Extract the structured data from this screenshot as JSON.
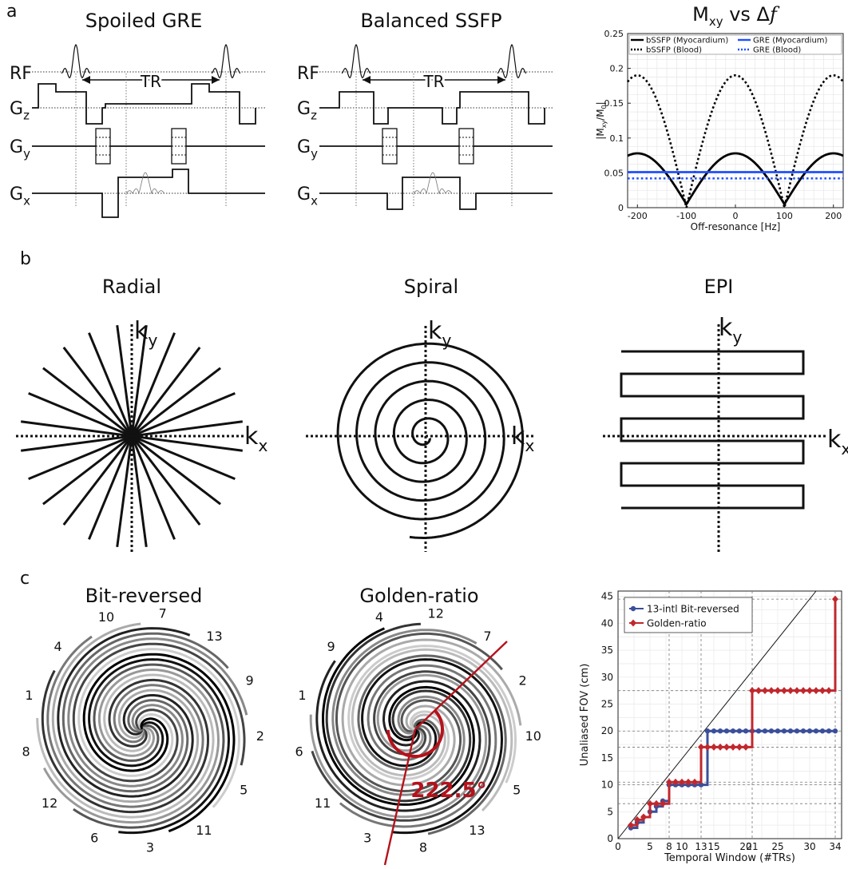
{
  "panels": {
    "a": {
      "letter": "a",
      "seq_titles": [
        "Spoiled GRE",
        "Balanced SSFP"
      ],
      "rows": {
        "rf": "RF",
        "g_main": "G",
        "gz_sub": "z",
        "gy_sub": "y",
        "gx_sub": "x",
        "tr": "TR"
      }
    },
    "b": {
      "letter": "b",
      "titles": [
        "Radial",
        "Spiral",
        "EPI"
      ],
      "k_main": "k",
      "ky_sub": "y",
      "kx_sub": "x"
    },
    "c": {
      "letter": "c",
      "titles": [
        "Bit-reversed",
        "Golden-ratio"
      ],
      "bit_reversed_labels": [
        "7",
        "13",
        "9",
        "2",
        "5",
        "11",
        "3",
        "6",
        "12",
        "8",
        "1",
        "4",
        "10"
      ],
      "golden_labels": [
        "12",
        "7",
        "2",
        "10",
        "5",
        "13",
        "8",
        "3",
        "11",
        "6",
        "1",
        "9",
        "4"
      ],
      "angle_label": "222.5°"
    }
  },
  "chart_data": [
    {
      "type": "line",
      "title": "Mₓᵧ vs Δf",
      "title_main": "M",
      "title_sub": "xy",
      "title_rest": " vs Δ",
      "title_f": "f",
      "xlabel": "Off-resonance [Hz]",
      "ylabel_main": "|M",
      "ylabel_sub1": "xy",
      "ylabel_mid": "/M",
      "ylabel_sub2": "0",
      "ylabel_end": "|",
      "xlim": [
        -220,
        220
      ],
      "ylim": [
        0,
        0.25
      ],
      "xticks": [
        "-200",
        "-100",
        "0",
        "100",
        "200"
      ],
      "xtick_values": [
        -200,
        -100,
        0,
        100,
        200
      ],
      "yticks": [
        "0",
        "0.05",
        "0.1",
        "0.15",
        "0.2",
        "0.25"
      ],
      "ytick_values": [
        0,
        0.05,
        0.1,
        0.15,
        0.2,
        0.25
      ],
      "grid": true,
      "legend_position": "top",
      "series": [
        {
          "name": "bSSFP (Myocardium)",
          "color": "#000000",
          "style": "solid",
          "kind": "bssfp",
          "peak": 0.078,
          "min": 0.005
        },
        {
          "name": "bSSFP (Blood)",
          "color": "#000000",
          "style": "dotted",
          "kind": "bssfp",
          "peak": 0.19,
          "min": 0.0
        },
        {
          "name": "GRE (Myocardium)",
          "color": "#1f4fff",
          "style": "solid",
          "kind": "const",
          "value": 0.051
        },
        {
          "name": "GRE (Blood)",
          "color": "#1f4fff",
          "style": "dotted",
          "kind": "const",
          "value": 0.042
        }
      ]
    },
    {
      "type": "line",
      "xlabel": "Temporal Window (#TRs)",
      "ylabel": "Unaliased FOV (cm)",
      "xlim": [
        0,
        35
      ],
      "ylim": [
        0,
        46
      ],
      "xticks": [
        "0",
        "5",
        "8",
        "10",
        "13",
        "15",
        "20",
        "21",
        "25",
        "30",
        "34"
      ],
      "xtick_values": [
        0,
        5,
        8,
        10,
        13,
        15,
        20,
        21,
        25,
        30,
        34
      ],
      "yticks": [
        "0",
        "5",
        "10",
        "15",
        "20",
        "25",
        "30",
        "35",
        "40",
        "45"
      ],
      "ytick_values": [
        0,
        5,
        10,
        15,
        20,
        25,
        30,
        35,
        40,
        45
      ],
      "grid": true,
      "legend_position": "top-left",
      "reference_line": {
        "x": [
          0,
          31
        ],
        "y": [
          0,
          46
        ]
      },
      "series": [
        {
          "name": "13-intl Bit-reversed",
          "color": "#3a4f9b",
          "marker": "circle",
          "x": [
            2,
            3,
            4,
            5,
            6,
            7,
            8,
            9,
            10,
            11,
            12,
            13,
            14,
            15,
            16,
            17,
            18,
            19,
            20,
            21,
            22,
            23,
            24,
            25,
            26,
            27,
            28,
            29,
            30,
            31,
            32,
            33,
            34
          ],
          "y": [
            2,
            3,
            4,
            5,
            6,
            7,
            10,
            10,
            10,
            10,
            10,
            10,
            20,
            20,
            20,
            20,
            20,
            20,
            20,
            20,
            20,
            20,
            20,
            20,
            20,
            20,
            20,
            20,
            20,
            20,
            20,
            20,
            20
          ]
        },
        {
          "name": "Golden-ratio",
          "color": "#c0282d",
          "marker": "diamond",
          "x": [
            2,
            3,
            4,
            5,
            6,
            7,
            8,
            9,
            10,
            11,
            12,
            13,
            14,
            15,
            16,
            17,
            18,
            19,
            20,
            21,
            22,
            23,
            24,
            25,
            26,
            27,
            28,
            29,
            30,
            31,
            32,
            33,
            34
          ],
          "y": [
            2.5,
            3.5,
            4,
            6.5,
            6.5,
            6.5,
            10.5,
            10.5,
            10.5,
            10.5,
            10.5,
            17,
            17,
            17,
            17,
            17,
            17,
            17,
            17,
            27.5,
            27.5,
            27.5,
            27.5,
            27.5,
            27.5,
            27.5,
            27.5,
            27.5,
            27.5,
            27.5,
            27.5,
            27.5,
            44.5
          ]
        }
      ],
      "dashed_levels": [
        6.5,
        10,
        10.5,
        17,
        20,
        27.5,
        44.5
      ],
      "dashed_verticals": [
        8,
        13,
        21,
        34
      ]
    }
  ]
}
